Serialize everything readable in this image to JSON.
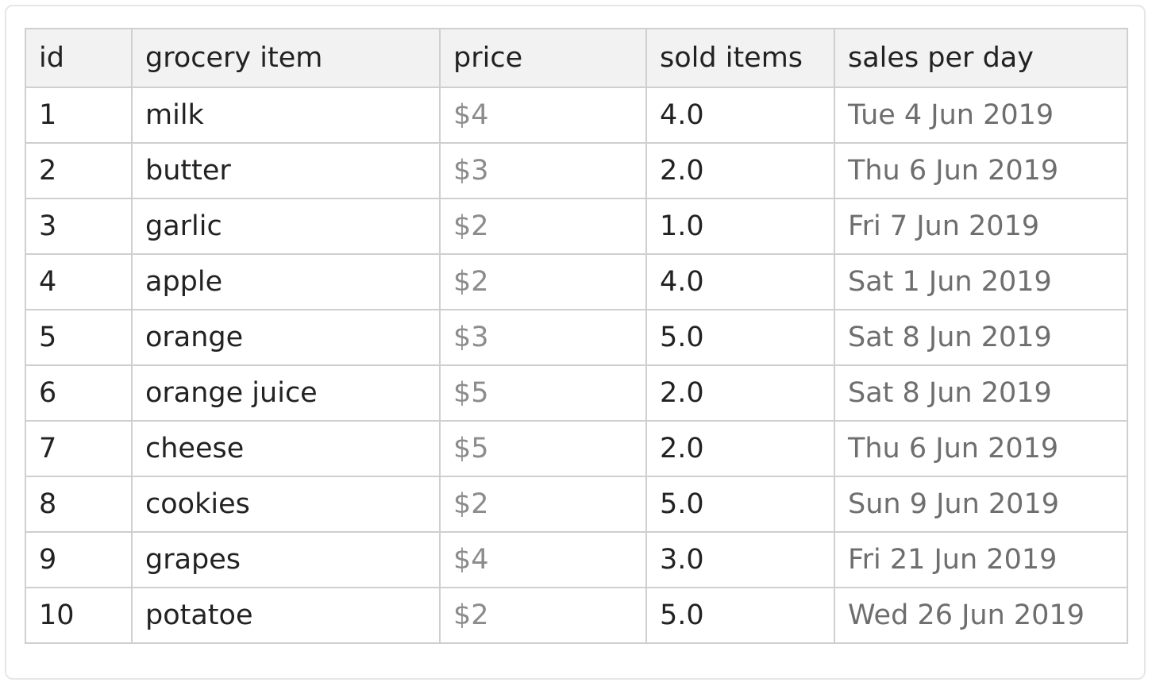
{
  "table": {
    "columns": [
      "id",
      "grocery item",
      "price",
      "sold items",
      "sales per day"
    ],
    "rows": [
      [
        "1",
        "milk",
        "$4",
        "4.0",
        "Tue 4 Jun 2019"
      ],
      [
        "2",
        "butter",
        "$3",
        "2.0",
        "Thu 6 Jun 2019"
      ],
      [
        "3",
        "garlic",
        "$2",
        "1.0",
        "Fri 7 Jun 2019"
      ],
      [
        "4",
        "apple",
        "$2",
        "4.0",
        "Sat 1 Jun 2019"
      ],
      [
        "5",
        "orange",
        "$3",
        "5.0",
        "Sat 8 Jun 2019"
      ],
      [
        "6",
        "orange juice",
        "$5",
        "2.0",
        "Sat 8 Jun 2019"
      ],
      [
        "7",
        "cheese",
        "$5",
        "2.0",
        "Thu 6 Jun 2019"
      ],
      [
        "8",
        "cookies",
        "$2",
        "5.0",
        "Sun 9 Jun 2019"
      ],
      [
        "9",
        "grapes",
        "$4",
        "3.0",
        "Fri 21 Jun 2019"
      ],
      [
        "10",
        "potatoe",
        "$2",
        "5.0",
        "Wed 26 Jun 2019"
      ]
    ]
  },
  "colors": {
    "border": "#cfcfcf",
    "header_background": "#f2f2f2",
    "text": "#222222",
    "price_text": "#8c8c8c",
    "date_text": "#6e6e6e"
  }
}
